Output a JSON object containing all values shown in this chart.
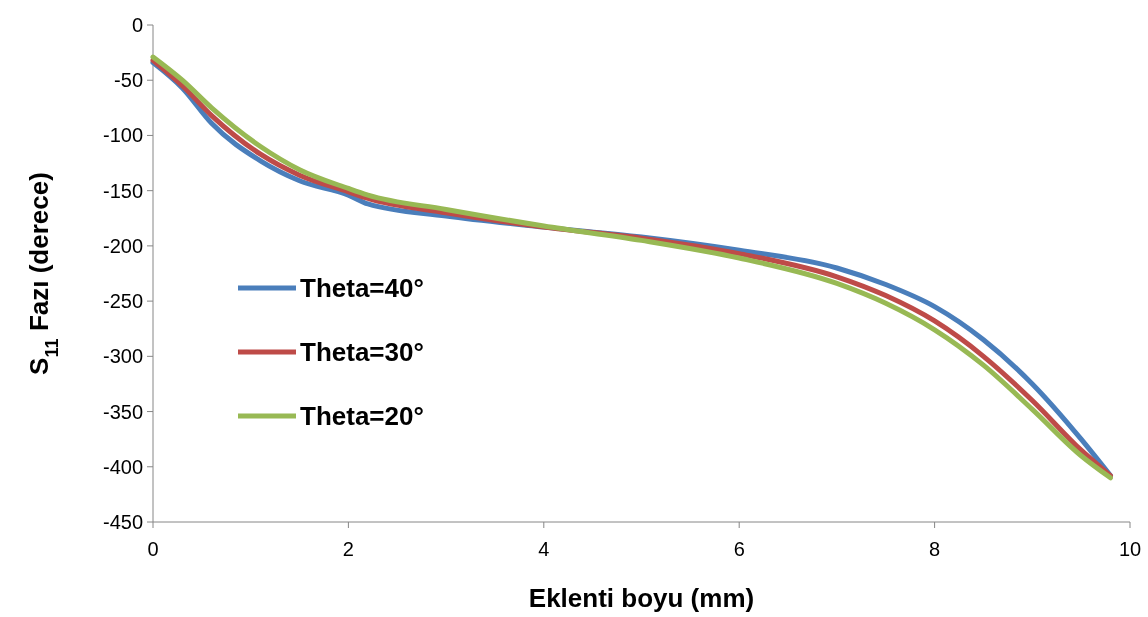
{
  "chart_data": {
    "type": "line",
    "xlabel": "Eklenti boyu (mm)",
    "ylabel": "S$_{11}$ Fazı (derece)",
    "x": [
      0,
      0.3,
      0.6,
      1.1,
      1.5,
      2,
      2.2,
      3,
      4,
      5,
      6,
      7,
      7.5,
      8,
      8.5,
      9,
      9.5,
      9.8
    ],
    "xlim": [
      0,
      10
    ],
    "xticks": [
      0,
      2,
      4,
      6,
      8,
      10
    ],
    "ylim": [
      -450,
      0
    ],
    "yticks": [
      0,
      -50,
      -100,
      -150,
      -200,
      -250,
      -300,
      -350,
      -400,
      -450
    ],
    "grid": false,
    "legend": "left",
    "marker": "none",
    "line_style": "solid",
    "series": [
      {
        "name": "Theta=40°",
        "color": "#4a7ebb",
        "values": [
          -34,
          -57,
          -89,
          -123,
          -141,
          -154,
          -162,
          -173,
          -183,
          -192,
          -204,
          -220,
          -235,
          -255,
          -285,
          -325,
          -375,
          -408
        ]
      },
      {
        "name": "Theta=30°",
        "color": "#be4b48",
        "values": [
          -32,
          -55,
          -82,
          -117,
          -136,
          -151,
          -157,
          -170,
          -183,
          -193,
          -207,
          -228,
          -245,
          -268,
          -300,
          -340,
          -385,
          -408
        ]
      },
      {
        "name": "Theta=20°",
        "color": "#98b954",
        "values": [
          -29,
          -50,
          -75,
          -110,
          -131,
          -148,
          -154,
          -167,
          -182,
          -195,
          -211,
          -234,
          -252,
          -276,
          -308,
          -348,
          -390,
          -410
        ]
      }
    ]
  }
}
